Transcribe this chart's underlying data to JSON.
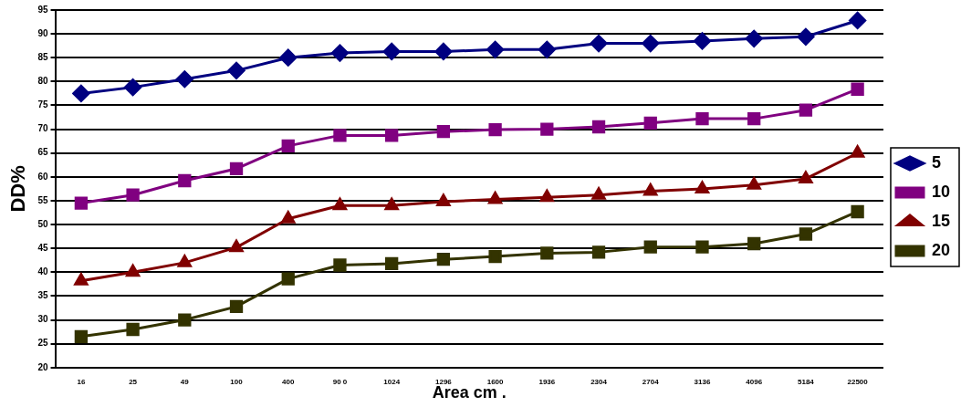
{
  "chart_data": {
    "type": "line",
    "xlabel": "Area cm .",
    "ylabel": "DD%",
    "categories": [
      "16",
      "25",
      "49",
      "100",
      "400",
      "90 0",
      "1024",
      "1296",
      "1600",
      "1936",
      "2304",
      "2704",
      "3136",
      "4096",
      "5184",
      "22500"
    ],
    "series": [
      {
        "name": "5",
        "color": "#000080",
        "marker": "diamond",
        "values": [
          77.5,
          78.8,
          80.5,
          82.3,
          85,
          86,
          86.3,
          86.3,
          86.7,
          86.7,
          88,
          88,
          88.5,
          89,
          89.4,
          92.8
        ]
      },
      {
        "name": "10",
        "color": "#800080",
        "marker": "square",
        "values": [
          54.5,
          56.2,
          59.2,
          61.7,
          66.5,
          68.7,
          68.7,
          69.5,
          69.9,
          70,
          70.5,
          71.3,
          72.2,
          72.2,
          74,
          78.4
        ]
      },
      {
        "name": "15",
        "color": "#800000",
        "marker": "triangle",
        "values": [
          38.2,
          40,
          42,
          45.2,
          51.2,
          54,
          54,
          54.8,
          55.3,
          55.7,
          56.2,
          57,
          57.5,
          58.3,
          59.6,
          65
        ]
      },
      {
        "name": "20",
        "color": "#333300",
        "marker": "square",
        "values": [
          26.5,
          28,
          30,
          32.8,
          38.6,
          41.5,
          41.8,
          42.7,
          43.3,
          44,
          44.2,
          45.3,
          45.3,
          46,
          48,
          52.7
        ]
      }
    ],
    "ylim": [
      20,
      95
    ],
    "yticks": [
      20,
      25,
      30,
      35,
      40,
      45,
      50,
      55,
      60,
      65,
      70,
      75,
      80,
      85,
      90,
      95
    ],
    "grid": "y",
    "legend": "right"
  }
}
